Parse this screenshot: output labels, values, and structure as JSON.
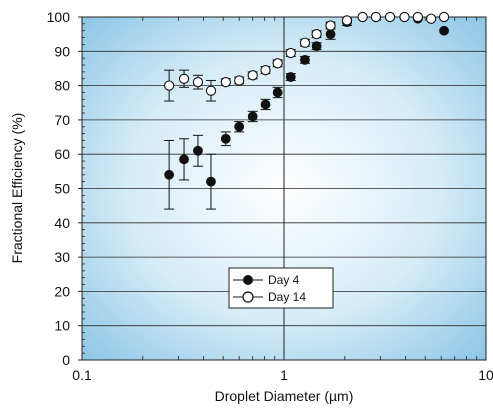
{
  "chart_data": {
    "type": "scatter",
    "xlabel": "Droplet Diameter (µm)",
    "ylabel": "Fractional Efficiency (%)",
    "xscale": "log",
    "xlim": [
      0.1,
      10
    ],
    "ylim": [
      0,
      100
    ],
    "x_tick_labels": [
      "0.1",
      "1",
      "10"
    ],
    "y_tick_labels": [
      "0",
      "10",
      "20",
      "30",
      "40",
      "50",
      "60",
      "70",
      "80",
      "90",
      "100"
    ],
    "grid": "horizontal",
    "background": "radial gradient white center to light blue edges",
    "legend": {
      "placement": "lower-center"
    },
    "series": [
      {
        "name": "Day 4",
        "marker": "filled-circle",
        "points": [
          {
            "x": 0.27,
            "y": 54,
            "err": 10
          },
          {
            "x": 0.32,
            "y": 58.5,
            "err": 6
          },
          {
            "x": 0.375,
            "y": 61,
            "err": 4.5
          },
          {
            "x": 0.435,
            "y": 52,
            "err": 8
          },
          {
            "x": 0.515,
            "y": 64.5,
            "err": 2
          },
          {
            "x": 0.6,
            "y": 68,
            "err": 1.5
          },
          {
            "x": 0.7,
            "y": 71,
            "err": 1.5
          },
          {
            "x": 0.81,
            "y": 74.5,
            "err": 1.5
          },
          {
            "x": 0.93,
            "y": 78,
            "err": 1.5
          },
          {
            "x": 1.08,
            "y": 82.5,
            "err": 1
          },
          {
            "x": 1.27,
            "y": 87.5,
            "err": 1
          },
          {
            "x": 1.45,
            "y": 91.5,
            "err": 1
          },
          {
            "x": 1.7,
            "y": 95,
            "err": 1.5
          },
          {
            "x": 2.05,
            "y": 98.5,
            "err": 1
          },
          {
            "x": 2.45,
            "y": 100,
            "err": 0
          },
          {
            "x": 2.85,
            "y": 100,
            "err": 0
          },
          {
            "x": 3.35,
            "y": 100,
            "err": 0
          },
          {
            "x": 3.95,
            "y": 100,
            "err": 0
          },
          {
            "x": 4.6,
            "y": 99.5,
            "err": 0
          },
          {
            "x": 5.35,
            "y": 99.5,
            "err": 0
          },
          {
            "x": 6.2,
            "y": 96,
            "err": 0
          }
        ]
      },
      {
        "name": "Day 14",
        "marker": "open-circle",
        "points": [
          {
            "x": 0.27,
            "y": 80,
            "err": 4.5
          },
          {
            "x": 0.32,
            "y": 82,
            "err": 2.5
          },
          {
            "x": 0.375,
            "y": 81,
            "err": 2
          },
          {
            "x": 0.435,
            "y": 78.5,
            "err": 3
          },
          {
            "x": 0.515,
            "y": 81,
            "err": 1
          },
          {
            "x": 0.6,
            "y": 81.5,
            "err": 1
          },
          {
            "x": 0.7,
            "y": 83,
            "err": 1
          },
          {
            "x": 0.81,
            "y": 84.5,
            "err": 1
          },
          {
            "x": 0.93,
            "y": 86.5,
            "err": 1
          },
          {
            "x": 1.08,
            "y": 89.5,
            "err": 1
          },
          {
            "x": 1.27,
            "y": 92.5,
            "err": 1
          },
          {
            "x": 1.45,
            "y": 95,
            "err": 1
          },
          {
            "x": 1.7,
            "y": 97.5,
            "err": 1
          },
          {
            "x": 2.05,
            "y": 99,
            "err": 0.5
          },
          {
            "x": 2.45,
            "y": 100,
            "err": 0
          },
          {
            "x": 2.85,
            "y": 100,
            "err": 0
          },
          {
            "x": 3.35,
            "y": 100,
            "err": 0
          },
          {
            "x": 3.95,
            "y": 100,
            "err": 0
          },
          {
            "x": 4.6,
            "y": 100,
            "err": 0
          },
          {
            "x": 5.35,
            "y": 99.5,
            "err": 0
          },
          {
            "x": 6.2,
            "y": 100,
            "err": 0
          }
        ]
      }
    ]
  }
}
